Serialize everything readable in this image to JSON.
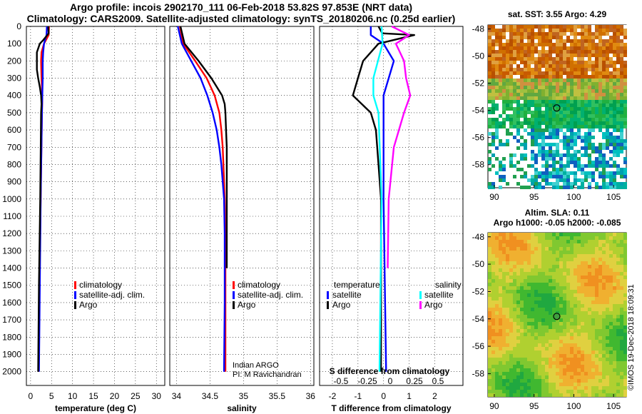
{
  "titles": {
    "line1": "Argo profile: incois 2902170_111 06-Feb-2018 53.82S 97.853E (NRT data)",
    "line2": "Climatology: CARS2009. Satellite-adjusted climatology: synTS_20180206.nc (0.25d earlier)"
  },
  "credits": {
    "line1": "Indian ARGO",
    "line2": "PI: M Ravichandran"
  },
  "imos": "©IMOS 19-Dec-2018 18:09:31",
  "colors": {
    "climatology": "#ff0000",
    "satellite": "#0000ff",
    "argo": "#000000",
    "sat_salinity": "#00ffff",
    "argo_salinity": "#ff00ff",
    "grid": "#000000"
  },
  "chart_data": [
    {
      "type": "line",
      "title": "",
      "xlabel": "temperature (deg C)",
      "ylabel": "",
      "xlim": [
        -1,
        32
      ],
      "ylim": [
        2080,
        0
      ],
      "xticks": [
        0,
        5,
        10,
        15,
        20,
        25,
        30
      ],
      "xticklabels": [
        "0",
        "5",
        "10",
        "15",
        "20",
        "25",
        "30"
      ],
      "yticks": [
        0,
        100,
        200,
        300,
        400,
        500,
        600,
        700,
        800,
        900,
        1000,
        1100,
        1200,
        1300,
        1400,
        1500,
        1600,
        1700,
        1800,
        1900,
        2000
      ],
      "yticklabels": [
        "0",
        "100",
        "200",
        "300",
        "400",
        "500",
        "600",
        "700",
        "800",
        "900",
        "1000",
        "1100",
        "1200",
        "1300",
        "1400",
        "1500",
        "1600",
        "1700",
        "1800",
        "1900",
        "2000"
      ],
      "legend": [
        "climatology",
        "satellite-adj. clim.",
        "Argo"
      ],
      "legend_position": "lower-right",
      "series": [
        {
          "name": "climatology",
          "color": "#ff0000",
          "depth": [
            0,
            50,
            100,
            150,
            200,
            300,
            400,
            500,
            1000,
            1500,
            2000
          ],
          "values": [
            4.4,
            4.3,
            3.2,
            2.6,
            2.5,
            2.6,
            2.8,
            2.7,
            2.4,
            2.1,
            1.9
          ]
        },
        {
          "name": "satellite-adj. clim.",
          "color": "#0000ff",
          "depth": [
            0,
            50,
            100,
            150,
            200,
            300,
            400,
            500,
            1000,
            1500,
            2000
          ],
          "values": [
            3.9,
            3.8,
            3.2,
            3.0,
            2.9,
            2.9,
            2.8,
            2.7,
            2.4,
            2.2,
            2.0
          ]
        },
        {
          "name": "Argo",
          "color": "#000000",
          "depth": [
            0,
            40,
            80,
            100,
            150,
            250,
            300,
            350,
            400,
            450,
            500,
            1000,
            1500,
            2000
          ],
          "values": [
            4.2,
            4.3,
            3.0,
            2.2,
            1.5,
            1.5,
            1.8,
            2.2,
            2.5,
            2.6,
            2.5,
            2.3,
            2.0,
            1.8
          ]
        }
      ]
    },
    {
      "type": "line",
      "title": "",
      "xlabel": "salinity",
      "ylabel": "",
      "xlim": [
        33.9,
        36.05
      ],
      "ylim": [
        2080,
        0
      ],
      "xticks": [
        34,
        34.5,
        35,
        35.5,
        36
      ],
      "xticklabels": [
        "34",
        "34.5",
        "35",
        "35.5",
        "36"
      ],
      "legend": [
        "climatology",
        "satellite-adj. clim.",
        "Argo"
      ],
      "legend_position": "lower-right",
      "series": [
        {
          "name": "climatology",
          "color": "#ff0000",
          "depth": [
            0,
            100,
            200,
            300,
            400,
            500,
            600,
            700,
            800,
            1000,
            1200,
            1400,
            1600,
            2000
          ],
          "values": [
            34.05,
            34.1,
            34.28,
            34.45,
            34.57,
            34.64,
            34.67,
            34.69,
            34.7,
            34.72,
            34.73,
            34.73,
            34.73,
            34.73
          ]
        },
        {
          "name": "satellite-adj. clim.",
          "color": "#0000ff",
          "depth": [
            0,
            100,
            200,
            300,
            400,
            500,
            600,
            700,
            800,
            900,
            1000,
            1200,
            1400,
            1600,
            2000
          ],
          "values": [
            34.02,
            34.08,
            34.22,
            34.36,
            34.46,
            34.54,
            34.6,
            34.64,
            34.67,
            34.69,
            34.71,
            34.72,
            34.72,
            34.72,
            34.71
          ]
        },
        {
          "name": "Argo",
          "color": "#000000",
          "depth": [
            0,
            100,
            200,
            300,
            400,
            450,
            500,
            600,
            700,
            800,
            900,
            1000,
            1200,
            1400
          ],
          "values": [
            34.06,
            34.12,
            34.33,
            34.52,
            34.68,
            34.72,
            34.73,
            34.74,
            34.75,
            34.75,
            34.75,
            34.75,
            34.75,
            34.75
          ]
        }
      ]
    },
    {
      "type": "line",
      "title": "",
      "xlabel": "T difference from climatology",
      "ylabel": "",
      "xlim": [
        -2.5,
        3.1
      ],
      "ylim": [
        2080,
        0
      ],
      "xticks": [
        -2,
        -1,
        0,
        1,
        2
      ],
      "xticklabels": [
        "-2",
        "-1",
        "0",
        "1",
        "2"
      ],
      "secondary_xlabel": "S difference from climatology",
      "secondary_xticklabels": [
        "-0.5",
        "-0.25",
        "0",
        "0.25",
        "0.5"
      ],
      "legend_groups": {
        "temperature": [
          "satellite",
          "Argo"
        ],
        "salinity": [
          "satellite",
          "Argo"
        ]
      },
      "legend_position": "lower-center",
      "series": [
        {
          "name": "temperature satellite",
          "color": "#0000ff",
          "depth": [
            0,
            50,
            100,
            200,
            400,
            600,
            1000,
            2000
          ],
          "values": [
            -0.5,
            -0.5,
            0.0,
            0.4,
            0.0,
            0.0,
            0.0,
            0.1
          ]
        },
        {
          "name": "temperature Argo",
          "color": "#000000",
          "depth": [
            0,
            40,
            50,
            100,
            150,
            200,
            300,
            400,
            500,
            600,
            800,
            1000,
            2000
          ],
          "values": [
            -0.2,
            -0.05,
            1.2,
            -0.2,
            -0.5,
            -0.8,
            -1.0,
            -1.2,
            -0.5,
            -0.3,
            -0.2,
            -0.1,
            -0.1
          ]
        },
        {
          "name": "salinity satellite",
          "color": "#00ffff",
          "depth": [
            0,
            100,
            300,
            400,
            500,
            1000,
            2000
          ],
          "values": [
            -0.02,
            -0.01,
            -0.1,
            -0.1,
            -0.05,
            -0.02,
            -0.04
          ]
        },
        {
          "name": "salinity Argo",
          "color": "#ff00ff",
          "depth": [
            0,
            50,
            100,
            200,
            300,
            400,
            500,
            700,
            1000,
            1400
          ],
          "values": [
            0.08,
            0.25,
            0.12,
            0.2,
            0.22,
            0.26,
            0.2,
            0.1,
            0.05,
            0.04
          ]
        }
      ]
    },
    {
      "type": "heatmap",
      "title": "sat. SST: 3.55 Argo: 4.29",
      "xlim": [
        89.2,
        106.6
      ],
      "ylim": [
        -59.7,
        -47.7
      ],
      "xticks": [
        90,
        95,
        100,
        105
      ],
      "xticklabels": [
        "90",
        "95",
        "100",
        "105"
      ],
      "yticks": [
        -48,
        -50,
        -52,
        -54,
        -56,
        -58
      ],
      "yticklabels": [
        "-48",
        "-50",
        "-52",
        "-54",
        "-56",
        "-58"
      ],
      "marker": {
        "lon": 97.853,
        "lat": -53.82
      }
    },
    {
      "type": "heatmap",
      "title": "Altim. SLA: 0.11",
      "subtitle": "Argo h1000: -0.05 h2000: -0.085",
      "xlim": [
        89.2,
        106.6
      ],
      "ylim": [
        -59.7,
        -47.7
      ],
      "xticks": [
        90,
        95,
        100,
        105
      ],
      "xticklabels": [
        "90",
        "95",
        "100",
        "105"
      ],
      "yticks": [
        -48,
        -50,
        -52,
        -54,
        -56,
        -58
      ],
      "yticklabels": [
        "-48",
        "-50",
        "-52",
        "-54",
        "-56",
        "-58"
      ],
      "marker": {
        "lon": 97.853,
        "lat": -53.82
      }
    }
  ]
}
